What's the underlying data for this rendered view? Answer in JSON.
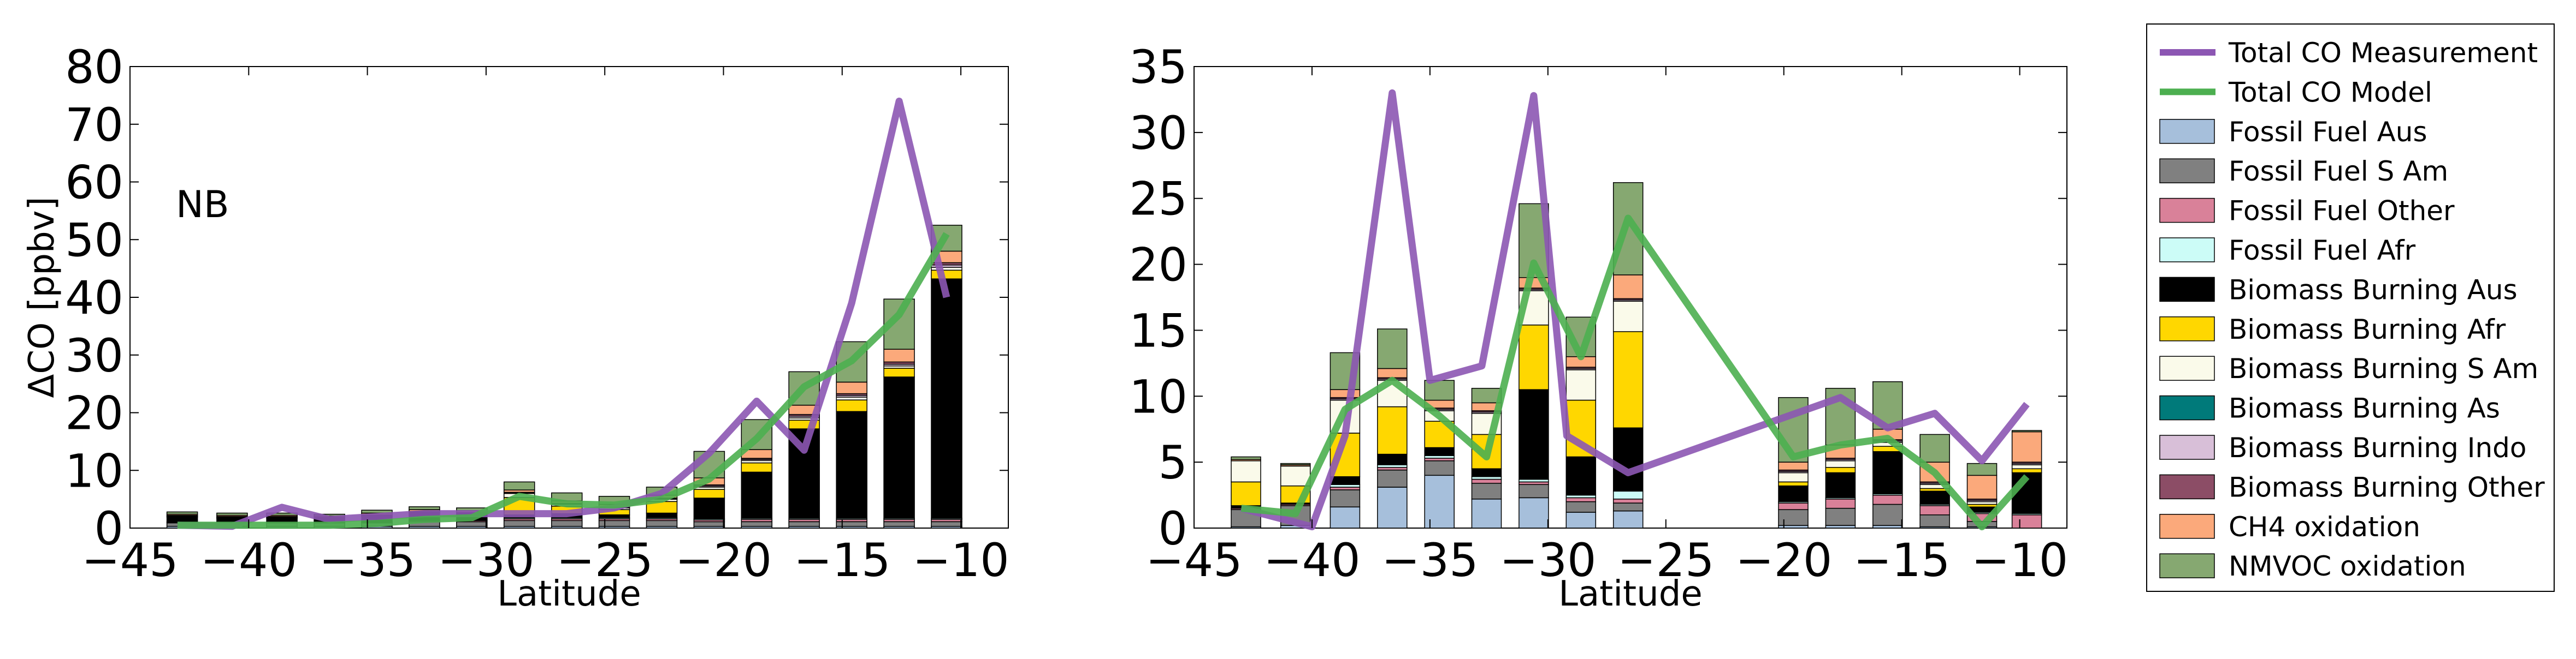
{
  "chart_data": [
    {
      "type": "bar",
      "panel": "left",
      "annotation": "NB",
      "xlabel": "Latitude",
      "ylabel": "ΔCO [ppbv]",
      "xlim": [
        -45,
        -8
      ],
      "ylim": [
        0,
        80
      ],
      "xticks": [
        -45,
        -40,
        -35,
        -30,
        -25,
        -20,
        -15,
        -10
      ],
      "xtick_labels": [
        "−45",
        "−40",
        "−35",
        "−30",
        "−25",
        "−20",
        "−15",
        "−10"
      ],
      "yticks": [
        0,
        10,
        20,
        30,
        40,
        50,
        60,
        70,
        80
      ],
      "ytick_labels": [
        "0",
        "10",
        "20",
        "30",
        "40",
        "50",
        "60",
        "70",
        "80"
      ],
      "stacked": true,
      "x": [
        -42.8,
        -40.7,
        -38.6,
        -36.6,
        -34.6,
        -32.6,
        -30.6,
        -28.6,
        -26.6,
        -24.6,
        -22.6,
        -20.6,
        -18.6,
        -16.6,
        -14.6,
        -12.6,
        -10.6
      ],
      "series": [
        {
          "name": "Fossil Fuel Aus",
          "values": [
            0.3,
            0.3,
            0.3,
            0.3,
            0.3,
            0.3,
            0.3,
            0.3,
            0.3,
            0.3,
            0.3,
            0.3,
            0.3,
            0.3,
            0.3,
            0.3,
            0.3
          ]
        },
        {
          "name": "Fossil Fuel S Am",
          "values": [
            0.6,
            0.6,
            0.6,
            0.6,
            0.6,
            0.8,
            0.8,
            1.0,
            1.0,
            1.0,
            1.0,
            0.8,
            0.8,
            0.8,
            0.8,
            0.8,
            0.8
          ]
        },
        {
          "name": "Fossil Fuel Other",
          "values": [
            0.1,
            0.1,
            0.1,
            0.1,
            0.1,
            0.2,
            0.2,
            0.3,
            0.3,
            0.3,
            0.3,
            0.3,
            0.4,
            0.4,
            0.4,
            0.4,
            0.4
          ]
        },
        {
          "name": "Fossil Fuel Afr",
          "values": [
            0.1,
            0.1,
            0.1,
            0.1,
            0.1,
            0.1,
            0.1,
            0.2,
            0.2,
            0.2,
            0.2,
            0.2,
            0.2,
            0.2,
            0.2,
            0.2,
            0.2
          ]
        },
        {
          "name": "Biomass Burning Aus",
          "values": [
            0.8,
            0.6,
            0.6,
            0.5,
            0.9,
            1.1,
            0.9,
            0.5,
            0.7,
            0.5,
            0.8,
            3.6,
            8.0,
            15.5,
            18.5,
            24.5,
            41.5
          ]
        },
        {
          "name": "Biomass Burning Afr",
          "values": [
            0,
            0,
            0,
            0,
            0,
            0.1,
            0.1,
            3.0,
            1.3,
            0.9,
            2.0,
            1.5,
            1.6,
            1.5,
            2.0,
            1.5,
            1.5
          ]
        },
        {
          "name": "Biomass Burning S Am",
          "values": [
            0.1,
            0.1,
            0.1,
            0.1,
            0.1,
            0.1,
            0.1,
            0.7,
            0.3,
            0.3,
            0.4,
            0.4,
            0.4,
            0.4,
            0.5,
            0.4,
            0.5
          ]
        },
        {
          "name": "Biomass Burning As",
          "values": [
            0,
            0,
            0,
            0,
            0,
            0,
            0,
            0,
            0,
            0,
            0,
            0,
            0,
            0,
            0,
            0,
            0
          ]
        },
        {
          "name": "Biomass Burning Indo",
          "values": [
            0.1,
            0.1,
            0.1,
            0.1,
            0.1,
            0.1,
            0.1,
            0.1,
            0.1,
            0.1,
            0.1,
            0.2,
            0.2,
            0.3,
            0.3,
            0.3,
            0.4
          ]
        },
        {
          "name": "Biomass Burning Other",
          "values": [
            0.1,
            0.1,
            0.1,
            0.1,
            0.1,
            0.1,
            0.1,
            0.1,
            0.1,
            0.1,
            0.1,
            0.2,
            0.2,
            0.3,
            0.3,
            0.4,
            0.4
          ]
        },
        {
          "name": "CH4 oxidation",
          "values": [
            0.2,
            0.2,
            0.2,
            0.2,
            0.3,
            0.3,
            0.3,
            0.4,
            0.4,
            0.4,
            0.5,
            1.2,
            1.5,
            1.6,
            2.0,
            2.2,
            2.0
          ]
        },
        {
          "name": "NMVOC oxidation",
          "values": [
            0.4,
            0.4,
            0.4,
            0.3,
            0.5,
            0.5,
            0.5,
            1.4,
            1.4,
            1.4,
            1.4,
            4.6,
            5.2,
            5.8,
            7.0,
            8.7,
            4.5
          ]
        }
      ],
      "lines": [
        {
          "name": "Total CO Measurement",
          "x": [
            -43.0,
            -40.7,
            -38.6,
            -36.6,
            -34.6,
            -32.6,
            -30.6,
            -28.6,
            -26.6,
            -24.6,
            -22.6,
            -20.6,
            -18.6,
            -16.6,
            -14.6,
            -12.6,
            -10.6
          ],
          "values": [
            0.5,
            0.3,
            3.6,
            1.5,
            2.0,
            2.5,
            2.5,
            2.5,
            2.5,
            3.5,
            6.0,
            13.0,
            22.0,
            13.5,
            39.0,
            74.0,
            40.0
          ]
        },
        {
          "name": "Total CO Model",
          "x": [
            -43.0,
            -40.7,
            -38.6,
            -36.6,
            -34.6,
            -32.6,
            -30.6,
            -28.6,
            -26.6,
            -24.6,
            -22.6,
            -20.6,
            -18.6,
            -16.6,
            -14.6,
            -12.6,
            -10.6
          ],
          "values": [
            0.5,
            0.5,
            0.5,
            0.5,
            0.8,
            1.5,
            1.8,
            5.5,
            4.2,
            4.0,
            5.0,
            8.5,
            15.5,
            24.5,
            29.0,
            37.0,
            51.0
          ]
        }
      ]
    },
    {
      "type": "bar",
      "panel": "right",
      "xlabel": "Latitude",
      "ylabel": "",
      "xlim": [
        -45,
        -8
      ],
      "ylim": [
        0,
        35
      ],
      "xticks": [
        -45,
        -40,
        -35,
        -30,
        -25,
        -20,
        -15,
        -10
      ],
      "xtick_labels": [
        "−45",
        "−40",
        "−35",
        "−30",
        "−25",
        "−20",
        "−15",
        "−10"
      ],
      "yticks": [
        0,
        5,
        10,
        15,
        20,
        25,
        30,
        35
      ],
      "ytick_labels": [
        "0",
        "5",
        "10",
        "15",
        "20",
        "25",
        "30",
        "35"
      ],
      "stacked": true,
      "x": [
        -42.8,
        -40.7,
        -38.6,
        -36.6,
        -34.6,
        -32.6,
        -30.6,
        -28.6,
        -26.6,
        -19.6,
        -17.6,
        -15.6,
        -13.6,
        -11.6,
        -9.7
      ],
      "series": [
        {
          "name": "Fossil Fuel Aus",
          "values": [
            0.1,
            0.2,
            1.6,
            3.1,
            4.0,
            2.2,
            2.3,
            1.2,
            1.3,
            0.2,
            0.2,
            0.2,
            0.1,
            0.1,
            0.0
          ]
        },
        {
          "name": "Fossil Fuel S Am",
          "values": [
            1.3,
            1.5,
            1.3,
            1.3,
            1.1,
            1.2,
            1.0,
            0.8,
            0.6,
            1.2,
            1.3,
            1.6,
            0.9,
            0.4,
            0.0
          ]
        },
        {
          "name": "Fossil Fuel Other",
          "values": [
            0.1,
            0.1,
            0.2,
            0.2,
            0.2,
            0.3,
            0.2,
            0.3,
            0.3,
            0.5,
            0.7,
            0.7,
            0.7,
            0.6,
            1.0
          ]
        },
        {
          "name": "Fossil Fuel Afr",
          "values": [
            0.0,
            0.0,
            0.2,
            0.2,
            0.2,
            0.2,
            0.2,
            0.2,
            0.6,
            0.1,
            0.1,
            0.1,
            0.1,
            0.1,
            0.1
          ]
        },
        {
          "name": "Biomass Burning Aus",
          "values": [
            0.2,
            0.1,
            0.6,
            0.8,
            0.6,
            0.6,
            6.8,
            2.9,
            4.8,
            1.2,
            1.9,
            3.2,
            1.0,
            0.4,
            3.1
          ]
        },
        {
          "name": "Biomass Burning Afr",
          "values": [
            1.8,
            1.3,
            3.3,
            3.6,
            2.0,
            2.6,
            4.9,
            4.3,
            7.3,
            0.3,
            0.4,
            0.4,
            0.2,
            0.2,
            0.3
          ]
        },
        {
          "name": "Biomass Burning S Am",
          "values": [
            1.6,
            1.5,
            2.5,
            2.0,
            0.8,
            1.6,
            2.6,
            2.3,
            2.3,
            0.7,
            0.5,
            0.3,
            0.3,
            0.2,
            0.3
          ]
        },
        {
          "name": "Biomass Burning As",
          "values": [
            0,
            0,
            0,
            0,
            0,
            0,
            0,
            0,
            0,
            0,
            0,
            0,
            0,
            0,
            0
          ]
        },
        {
          "name": "Biomass Burning Indo",
          "values": [
            0.0,
            0.0,
            0.1,
            0.1,
            0.1,
            0.1,
            0.1,
            0.1,
            0.1,
            0.1,
            0.1,
            0.1,
            0.1,
            0.1,
            0.1
          ]
        },
        {
          "name": "Biomass Burning Other",
          "values": [
            0.0,
            0.0,
            0.1,
            0.1,
            0.1,
            0.1,
            0.1,
            0.1,
            0.1,
            0.1,
            0.1,
            0.1,
            0.1,
            0.1,
            0.1
          ]
        },
        {
          "name": "CH4 oxidation",
          "values": [
            0.1,
            0.1,
            0.6,
            0.7,
            0.6,
            0.6,
            0.8,
            0.8,
            1.8,
            0.6,
            1.0,
            0.8,
            1.5,
            1.8,
            2.3
          ]
        },
        {
          "name": "NMVOC oxidation",
          "values": [
            0.2,
            0.1,
            2.8,
            3.0,
            1.5,
            1.1,
            5.6,
            3.0,
            7.0,
            4.9,
            4.3,
            3.6,
            2.1,
            0.9,
            0.1
          ]
        }
      ],
      "lines": [
        {
          "name": "Total CO Measurement",
          "x": [
            -43.0,
            -40.0,
            -38.6,
            -36.6,
            -35.0,
            -32.8,
            -30.6,
            -29.2,
            -26.6,
            -17.6,
            -15.6,
            -13.6,
            -11.6,
            -9.7
          ],
          "values": [
            1.5,
            0.1,
            7.0,
            33.0,
            11.2,
            12.3,
            32.8,
            7.0,
            4.2,
            9.9,
            7.6,
            8.7,
            5.1,
            9.4
          ]
        },
        {
          "name": "Total CO Model",
          "x": [
            -43.0,
            -40.7,
            -38.6,
            -36.6,
            -34.6,
            -32.6,
            -30.6,
            -28.6,
            -26.6,
            -19.6,
            -17.6,
            -15.6,
            -13.6,
            -11.6,
            -9.7
          ],
          "values": [
            1.5,
            1.1,
            9.0,
            11.2,
            8.5,
            5.4,
            20.1,
            13.0,
            23.5,
            5.4,
            6.3,
            6.8,
            4.2,
            0.1,
            3.9
          ]
        }
      ]
    }
  ],
  "legend": {
    "position": "right, outside plots",
    "entries": [
      {
        "label": "Total CO Measurement",
        "kind": "line",
        "color": "#8c56b3"
      },
      {
        "label": "Total CO Model",
        "kind": "line",
        "color": "#4caf50"
      },
      {
        "label": "Fossil Fuel Aus",
        "kind": "patch",
        "color": "#a6bfdb"
      },
      {
        "label": "Fossil Fuel S Am",
        "kind": "patch",
        "color": "#808080"
      },
      {
        "label": "Fossil Fuel Other",
        "kind": "patch",
        "color": "#d98199"
      },
      {
        "label": "Fossil Fuel Afr",
        "kind": "patch",
        "color": "#ccfcf7"
      },
      {
        "label": "Biomass Burning Aus",
        "kind": "patch",
        "color": "#000000"
      },
      {
        "label": "Biomass Burning Afr",
        "kind": "patch",
        "color": "#ffd700"
      },
      {
        "label": "Biomass Burning S Am",
        "kind": "patch",
        "color": "#fafaea"
      },
      {
        "label": "Biomass Burning As",
        "kind": "patch",
        "color": "#007a7a"
      },
      {
        "label": "Biomass Burning Indo",
        "kind": "patch",
        "color": "#d8bfd8"
      },
      {
        "label": "Biomass Burning Other",
        "kind": "patch",
        "color": "#8c4d66"
      },
      {
        "label": "CH4 oxidation",
        "kind": "patch",
        "color": "#fba97b"
      },
      {
        "label": "NMVOC oxidation",
        "kind": "patch",
        "color": "#86a871"
      }
    ]
  },
  "colors": {
    "Total CO Measurement": "#8c56b3",
    "Total CO Model": "#4caf50",
    "Fossil Fuel Aus": "#a6bfdb",
    "Fossil Fuel S Am": "#808080",
    "Fossil Fuel Other": "#d98199",
    "Fossil Fuel Afr": "#ccfcf7",
    "Biomass Burning Aus": "#000000",
    "Biomass Burning Afr": "#ffd700",
    "Biomass Burning S Am": "#fafaea",
    "Biomass Burning As": "#007a7a",
    "Biomass Burning Indo": "#d8bfd8",
    "Biomass Burning Other": "#8c4d66",
    "CH4 oxidation": "#fba97b",
    "NMVOC oxidation": "#86a871"
  }
}
